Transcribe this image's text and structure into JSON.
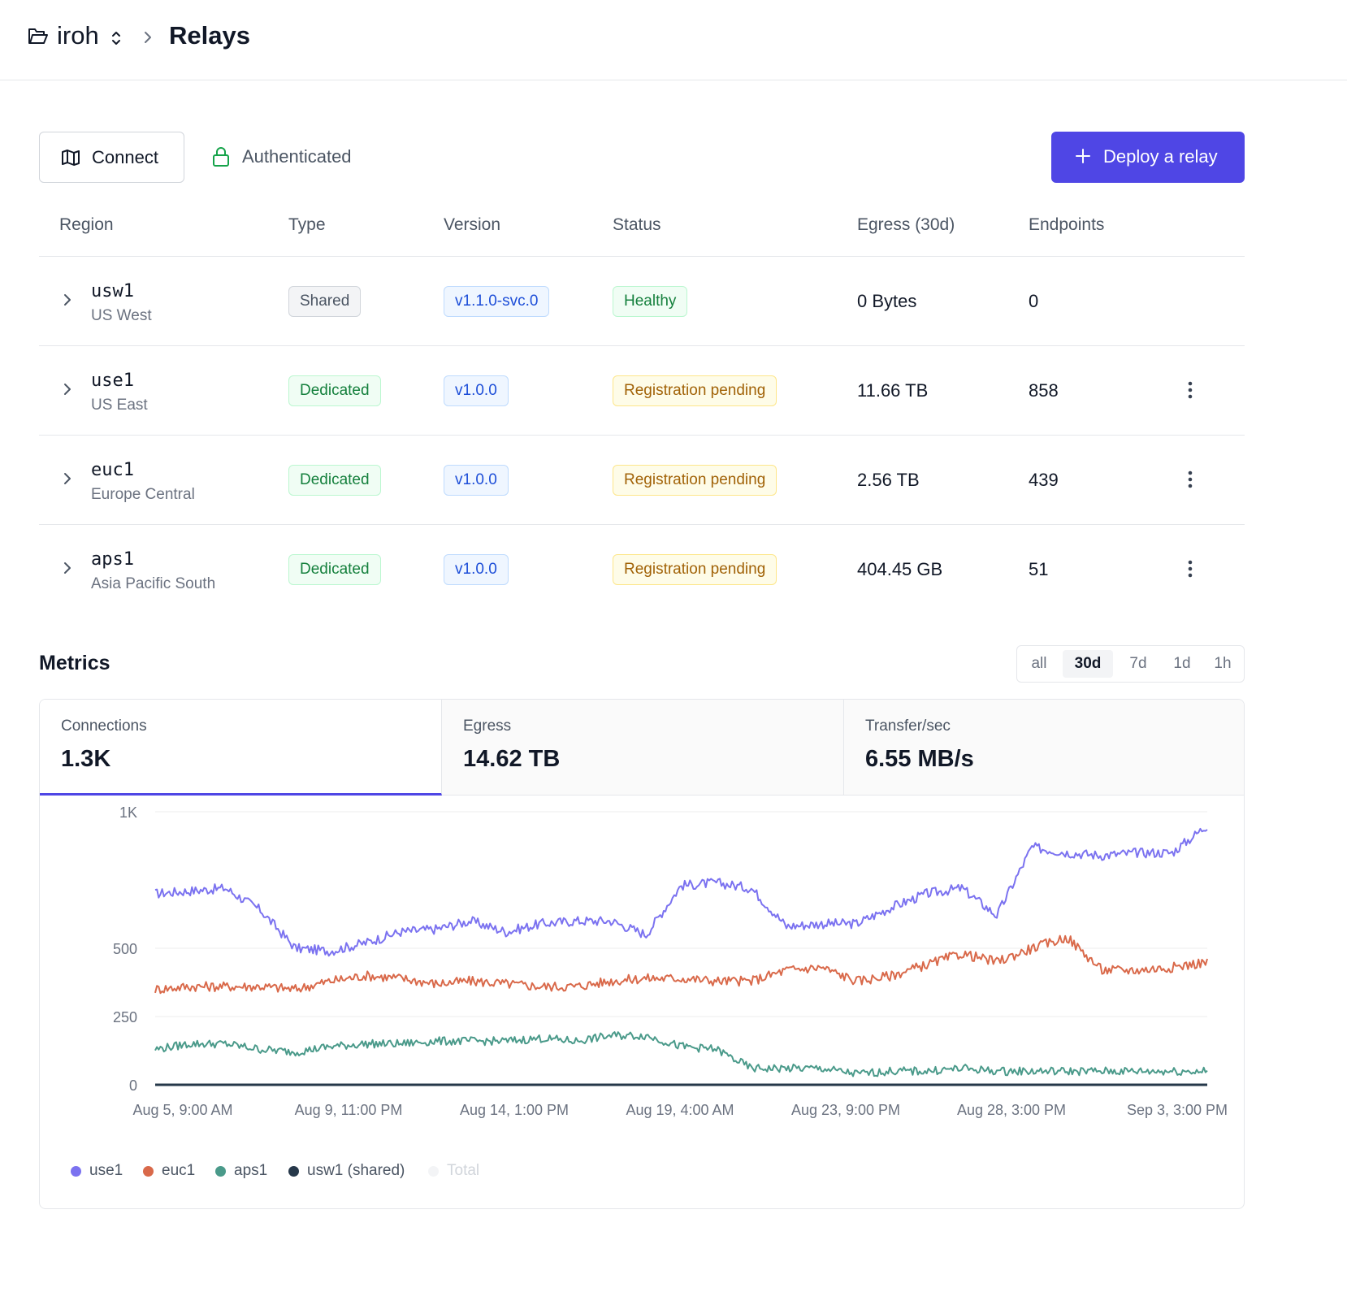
{
  "breadcrumb": {
    "project": "iroh",
    "page": "Relays"
  },
  "toolbar": {
    "connect_label": "Connect",
    "auth_label": "Authenticated",
    "deploy_label": "Deploy a relay"
  },
  "colors": {
    "accent": "#4f46e5",
    "use1": "#7b72f0",
    "euc1": "#d9694a",
    "aps1": "#4a9a8a",
    "usw1": "#26384a",
    "total": "#eeeeee"
  },
  "table": {
    "headers": [
      "Region",
      "Type",
      "Version",
      "Status",
      "Egress (30d)",
      "Endpoints"
    ],
    "rows": [
      {
        "code": "usw1",
        "name": "US West",
        "type": "Shared",
        "version": "v1.1.0-svc.0",
        "status": "Healthy",
        "egress": "0 Bytes",
        "endpoints": "0",
        "menu": false
      },
      {
        "code": "use1",
        "name": "US East",
        "type": "Dedicated",
        "version": "v1.0.0",
        "status": "Registration pending",
        "egress": "11.66 TB",
        "endpoints": "858",
        "menu": true
      },
      {
        "code": "euc1",
        "name": "Europe Central",
        "type": "Dedicated",
        "version": "v1.0.0",
        "status": "Registration pending",
        "egress": "2.56 TB",
        "endpoints": "439",
        "menu": true
      },
      {
        "code": "aps1",
        "name": "Asia Pacific South",
        "type": "Dedicated",
        "version": "v1.0.0",
        "status": "Registration pending",
        "egress": "404.45 GB",
        "endpoints": "51",
        "menu": true
      }
    ]
  },
  "metrics": {
    "title": "Metrics",
    "ranges": [
      "all",
      "30d",
      "7d",
      "1d",
      "1h"
    ],
    "selected_range": "30d",
    "stats": [
      {
        "label": "Connections",
        "value": "1.3K",
        "active": true
      },
      {
        "label": "Egress",
        "value": "14.62 TB",
        "active": false
      },
      {
        "label": "Transfer/sec",
        "value": "6.55 MB/s",
        "active": false
      }
    ]
  },
  "chart_data": {
    "type": "line",
    "title": "",
    "xlabel": "",
    "ylabel": "",
    "ylim": [
      0,
      1000
    ],
    "y_ticks": [
      "0",
      "250",
      "500",
      "1K"
    ],
    "x_ticks": [
      "Aug 5, 9:00 AM",
      "Aug 9, 11:00 PM",
      "Aug 14, 1:00 PM",
      "Aug 19, 4:00 AM",
      "Aug 23, 9:00 PM",
      "Aug 28, 3:00 PM",
      "Sep 3, 3:00 PM"
    ],
    "grid": true,
    "legend_position": "bottom-left",
    "x": [
      "Aug 5",
      "Aug 6",
      "Aug 7",
      "Aug 8",
      "Aug 9",
      "Aug 10",
      "Aug 11",
      "Aug 12",
      "Aug 13",
      "Aug 14",
      "Aug 15",
      "Aug 16",
      "Aug 17",
      "Aug 18",
      "Aug 19",
      "Aug 20",
      "Aug 21",
      "Aug 22",
      "Aug 23",
      "Aug 24",
      "Aug 25",
      "Aug 26",
      "Aug 27",
      "Aug 28",
      "Aug 29",
      "Aug 30",
      "Aug 31",
      "Sep 1",
      "Sep 2",
      "Sep 3",
      "Sep 4"
    ],
    "series": [
      {
        "name": "use1",
        "values": [
          700,
          710,
          720,
          640,
          500,
          490,
          520,
          560,
          570,
          600,
          560,
          590,
          600,
          600,
          550,
          730,
          740,
          720,
          580,
          590,
          590,
          650,
          700,
          720,
          620,
          870,
          850,
          840,
          850,
          850,
          950
        ]
      },
      {
        "name": "euc1",
        "values": [
          350,
          360,
          360,
          360,
          350,
          380,
          400,
          390,
          370,
          380,
          370,
          360,
          360,
          380,
          390,
          390,
          380,
          380,
          420,
          430,
          380,
          400,
          440,
          480,
          450,
          500,
          540,
          420,
          420,
          430,
          450
        ]
      },
      {
        "name": "aps1",
        "values": [
          130,
          150,
          150,
          130,
          120,
          140,
          150,
          150,
          160,
          160,
          160,
          170,
          160,
          180,
          180,
          140,
          130,
          60,
          60,
          60,
          40,
          50,
          50,
          60,
          50,
          50,
          50,
          50,
          50,
          50,
          50
        ]
      },
      {
        "name": "usw1 (shared)",
        "values": [
          0,
          0,
          0,
          0,
          0,
          0,
          0,
          0,
          0,
          0,
          0,
          0,
          0,
          0,
          0,
          0,
          0,
          0,
          0,
          0,
          0,
          0,
          0,
          0,
          0,
          0,
          0,
          0,
          0,
          0,
          0
        ]
      }
    ],
    "legend": [
      "use1",
      "euc1",
      "aps1",
      "usw1 (shared)",
      "Total"
    ]
  }
}
